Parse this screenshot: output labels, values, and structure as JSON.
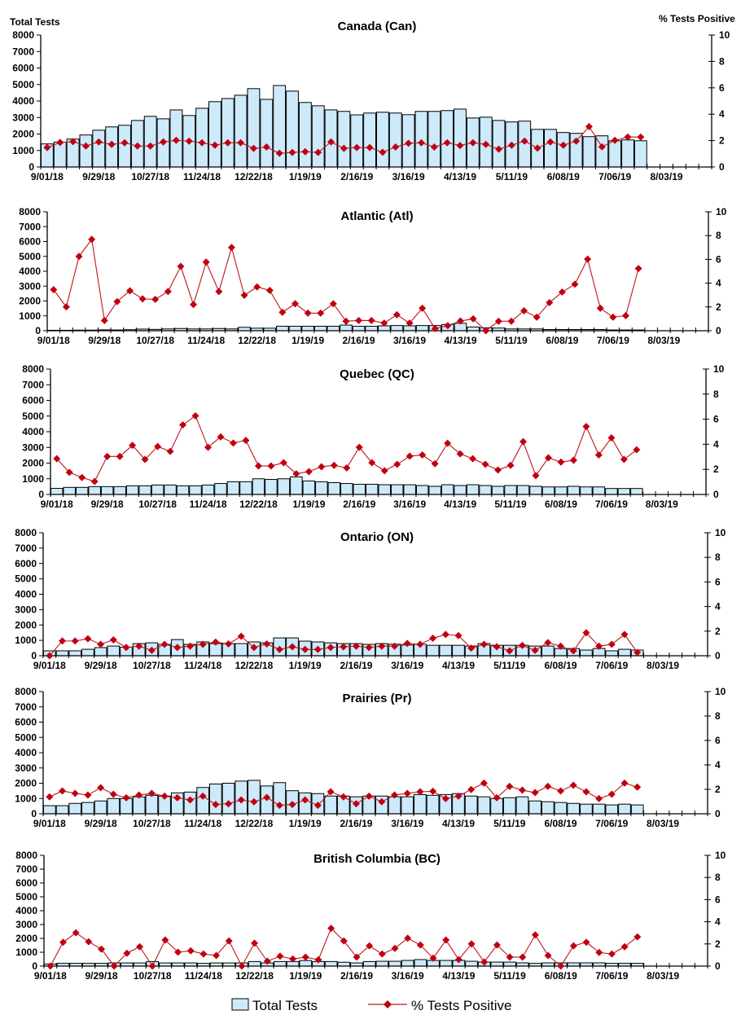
{
  "header": {
    "left_axis_title": "Total Tests",
    "right_axis_title": "% Tests Positive"
  },
  "legend": {
    "bars": "Total Tests",
    "line": "% Tests Positive"
  },
  "colors": {
    "bar_fill": "#cdeafb",
    "bar_stroke": "#000000",
    "line": "#c0141c",
    "marker": "#c00010"
  },
  "weeks": [
    "9/01/18",
    "9/08/18",
    "9/15/18",
    "9/22/18",
    "9/29/18",
    "10/06/18",
    "10/13/18",
    "10/20/18",
    "10/27/18",
    "11/03/18",
    "11/10/18",
    "11/17/18",
    "11/24/18",
    "12/01/18",
    "12/08/18",
    "12/15/18",
    "12/22/18",
    "12/29/18",
    "1/05/19",
    "1/12/19",
    "1/19/19",
    "1/26/19",
    "2/02/19",
    "2/09/19",
    "2/16/19",
    "2/23/19",
    "3/02/19",
    "3/09/19",
    "3/16/19",
    "3/23/19",
    "3/30/19",
    "4/06/19",
    "4/13/19",
    "4/20/19",
    "4/27/19",
    "5/04/19",
    "5/11/19",
    "5/18/19",
    "5/25/19",
    "6/01/19",
    "6/08/19",
    "6/15/19",
    "6/22/19",
    "6/29/19",
    "7/06/19",
    "7/13/19",
    "7/20/19"
  ],
  "x_tick_labels": [
    "9/01/18",
    "9/29/18",
    "10/27/18",
    "11/24/18",
    "12/22/18",
    "1/19/19",
    "2/16/19",
    "3/16/19",
    "4/13/19",
    "5/11/19",
    "6/08/19",
    "7/06/19",
    "8/03/19"
  ],
  "xlim": [
    "9/01/18",
    "8/24/19"
  ],
  "yticks_left": [
    "0",
    "1000",
    "2000",
    "3000",
    "4000",
    "5000",
    "6000",
    "7000",
    "8000"
  ],
  "yticks_right": [
    "0",
    "2",
    "4",
    "6",
    "8",
    "10"
  ],
  "chart_data": [
    {
      "type": "bar+line",
      "title": "Canada (Can)",
      "ylim_left": [
        0,
        8000
      ],
      "ylim_right": [
        0,
        10
      ],
      "series": [
        {
          "name": "Total Tests",
          "axis": "left",
          "type": "bar",
          "values": [
            1400,
            1510,
            1690,
            1940,
            2230,
            2430,
            2530,
            2820,
            3070,
            2920,
            3460,
            3120,
            3560,
            3960,
            4150,
            4350,
            4750,
            4100,
            4940,
            4600,
            3910,
            3710,
            3460,
            3370,
            3160,
            3270,
            3320,
            3270,
            3170,
            3370,
            3370,
            3420,
            3510,
            2970,
            3020,
            2820,
            2730,
            2780,
            2280,
            2280,
            2090,
            2040,
            1840,
            1890,
            1590,
            1640,
            1590
          ]
        },
        {
          "name": "% Tests Positive",
          "axis": "right",
          "type": "line",
          "values": [
            1.47,
            1.86,
            1.92,
            1.59,
            1.9,
            1.71,
            1.84,
            1.59,
            1.59,
            1.9,
            2.02,
            1.96,
            1.84,
            1.65,
            1.84,
            1.84,
            1.41,
            1.51,
            1.04,
            1.1,
            1.16,
            1.1,
            1.9,
            1.41,
            1.47,
            1.47,
            1.12,
            1.51,
            1.8,
            1.84,
            1.51,
            1.84,
            1.63,
            1.84,
            1.71,
            1.35,
            1.65,
            1.96,
            1.43,
            1.9,
            1.65,
            1.96,
            3.06,
            1.53,
            2.02,
            2.27,
            2.27
          ]
        }
      ]
    },
    {
      "type": "bar+line",
      "title": "Atlantic (Atl)",
      "ylim_left": [
        0,
        8000
      ],
      "ylim_right": [
        0,
        10
      ],
      "series": [
        {
          "name": "Total Tests",
          "axis": "left",
          "type": "bar",
          "values": [
            30,
            30,
            40,
            40,
            60,
            50,
            70,
            110,
            90,
            120,
            150,
            120,
            120,
            150,
            120,
            230,
            170,
            170,
            300,
            300,
            300,
            300,
            300,
            380,
            300,
            300,
            330,
            350,
            330,
            350,
            350,
            420,
            500,
            250,
            200,
            180,
            120,
            120,
            120,
            80,
            80,
            80,
            80,
            80,
            50,
            50,
            50
          ]
        },
        {
          "name": "% Tests Positive",
          "axis": "right",
          "type": "line",
          "values": [
            3.45,
            2.0,
            6.25,
            7.68,
            0.86,
            2.45,
            3.36,
            2.68,
            2.64,
            3.3,
            5.41,
            2.2,
            5.77,
            3.3,
            7.0,
            2.98,
            3.68,
            3.39,
            1.55,
            2.27,
            1.48,
            1.48,
            2.27,
            0.8,
            0.86,
            0.86,
            0.64,
            1.34,
            0.64,
            1.89,
            0.18,
            0.43,
            0.82,
            1.0,
            0.0,
            0.8,
            0.8,
            1.68,
            1.14,
            2.36,
            3.25,
            3.91,
            6.02,
            1.89,
            1.14,
            1.27,
            5.23
          ]
        }
      ]
    },
    {
      "type": "bar+line",
      "title": "Quebec (QC)",
      "ylim_left": [
        0,
        8000
      ],
      "ylim_right": [
        0,
        10
      ],
      "series": [
        {
          "name": "Total Tests",
          "axis": "left",
          "type": "bar",
          "values": [
            390,
            450,
            450,
            500,
            500,
            500,
            550,
            550,
            600,
            600,
            550,
            550,
            600,
            700,
            810,
            810,
            1000,
            960,
            1000,
            1120,
            860,
            810,
            755,
            700,
            650,
            650,
            620,
            620,
            620,
            570,
            520,
            620,
            570,
            620,
            570,
            520,
            570,
            570,
            520,
            480,
            480,
            520,
            480,
            480,
            380,
            380,
            380
          ]
        },
        {
          "name": "% Tests Positive",
          "axis": "right",
          "type": "line",
          "values": [
            2.85,
            1.76,
            1.35,
            1.03,
            3.03,
            3.03,
            3.91,
            2.79,
            3.82,
            3.43,
            5.54,
            6.27,
            3.76,
            4.59,
            4.1,
            4.31,
            2.27,
            2.27,
            2.53,
            1.65,
            1.82,
            2.21,
            2.32,
            2.12,
            3.76,
            2.53,
            1.89,
            2.4,
            3.05,
            3.15,
            2.45,
            4.08,
            3.24,
            2.85,
            2.4,
            1.95,
            2.32,
            4.21,
            1.5,
            2.92,
            2.58,
            2.73,
            5.41,
            3.15,
            4.51,
            2.79,
            3.56
          ]
        }
      ]
    },
    {
      "type": "bar+line",
      "title": "Ontario (ON)",
      "ylim_left": [
        0,
        8000
      ],
      "ylim_right": [
        0,
        10
      ],
      "series": [
        {
          "name": "Total Tests",
          "axis": "left",
          "type": "bar",
          "values": [
            320,
            320,
            320,
            420,
            530,
            630,
            560,
            790,
            840,
            740,
            1050,
            740,
            900,
            790,
            790,
            790,
            900,
            840,
            1160,
            1160,
            950,
            900,
            840,
            790,
            790,
            740,
            790,
            750,
            700,
            750,
            680,
            680,
            680,
            630,
            790,
            680,
            680,
            680,
            630,
            630,
            470,
            470,
            370,
            470,
            320,
            420,
            370
          ]
        },
        {
          "name": "% Tests Positive",
          "axis": "right",
          "type": "line",
          "values": [
            0.0,
            1.2,
            1.2,
            1.38,
            0.93,
            1.29,
            0.67,
            0.78,
            0.44,
            0.93,
            0.67,
            0.78,
            0.93,
            1.11,
            0.96,
            1.58,
            0.67,
            0.96,
            0.51,
            0.73,
            0.51,
            0.51,
            0.67,
            0.73,
            0.78,
            0.67,
            0.78,
            0.78,
            1.0,
            0.93,
            1.42,
            1.73,
            1.64,
            0.62,
            0.93,
            0.73,
            0.4,
            0.84,
            0.44,
            1.07,
            0.78,
            0.4,
            1.87,
            0.78,
            0.93,
            1.73,
            0.27
          ]
        }
      ]
    },
    {
      "type": "bar+line",
      "title": "Prairies (Pr)",
      "ylim_left": [
        0,
        8000
      ],
      "ylim_right": [
        0,
        10
      ],
      "series": [
        {
          "name": "Total Tests",
          "axis": "left",
          "type": "bar",
          "values": [
            530,
            530,
            680,
            740,
            840,
            1000,
            1000,
            1110,
            1210,
            1160,
            1370,
            1420,
            1720,
            1950,
            2000,
            2140,
            2190,
            1820,
            2040,
            1510,
            1370,
            1320,
            1160,
            1160,
            1110,
            1160,
            1160,
            1110,
            1110,
            1260,
            1210,
            1260,
            1320,
            1160,
            1110,
            1000,
            1050,
            1110,
            840,
            790,
            740,
            680,
            630,
            630,
            580,
            630,
            580
          ]
        },
        {
          "name": "% Tests Positive",
          "axis": "right",
          "type": "line",
          "values": [
            1.38,
            1.87,
            1.67,
            1.53,
            2.13,
            1.6,
            1.31,
            1.53,
            1.67,
            1.44,
            1.31,
            1.13,
            1.44,
            0.76,
            0.82,
            1.13,
            0.98,
            1.33,
            0.69,
            0.76,
            1.13,
            0.69,
            1.8,
            1.38,
            0.82,
            1.44,
            0.98,
            1.53,
            1.67,
            1.8,
            1.84,
            1.24,
            1.44,
            1.98,
            2.51,
            1.31,
            2.24,
            1.93,
            1.73,
            2.24,
            1.87,
            2.33,
            1.8,
            1.24,
            1.6,
            2.51,
            2.18
          ]
        }
      ]
    },
    {
      "type": "bar+line",
      "title": "British Columbia (BC)",
      "ylim_left": [
        0,
        8000
      ],
      "ylim_right": [
        0,
        10
      ],
      "series": [
        {
          "name": "Total Tests",
          "axis": "left",
          "type": "bar",
          "values": [
            150,
            200,
            200,
            200,
            200,
            230,
            230,
            230,
            330,
            230,
            230,
            230,
            200,
            230,
            230,
            230,
            330,
            230,
            330,
            330,
            400,
            330,
            330,
            280,
            230,
            330,
            350,
            350,
            410,
            470,
            410,
            410,
            410,
            350,
            290,
            290,
            290,
            235,
            200,
            235,
            235,
            235,
            235,
            235,
            200,
            200,
            200
          ]
        },
        {
          "name": "% Tests Positive",
          "axis": "right",
          "type": "line",
          "values": [
            0.0,
            2.15,
            3.01,
            2.2,
            1.53,
            0.0,
            1.16,
            1.75,
            0.0,
            2.35,
            1.26,
            1.38,
            1.09,
            0.96,
            2.27,
            0.0,
            2.07,
            0.44,
            0.89,
            0.64,
            0.81,
            0.57,
            3.41,
            2.27,
            0.81,
            1.83,
            1.09,
            1.6,
            2.52,
            1.9,
            0.72,
            2.35,
            0.59,
            2.0,
            0.37,
            1.9,
            0.81,
            0.81,
            2.81,
            0.96,
            0.0,
            1.83,
            2.15,
            1.23,
            1.09,
            1.75,
            2.64
          ]
        }
      ]
    }
  ]
}
